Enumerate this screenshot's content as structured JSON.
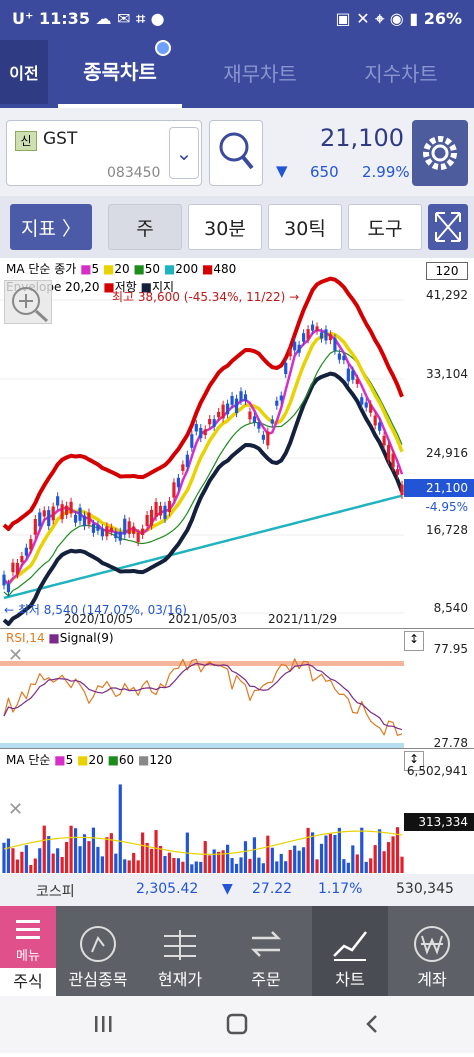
{
  "status": {
    "carrier": "U⁺",
    "time": "11:35",
    "battery": "26%"
  },
  "topnav": {
    "back": "이전",
    "tabs": [
      "종목차트",
      "재무차트",
      "지수차트"
    ]
  },
  "stock": {
    "badge": "신",
    "name": "GST",
    "code": "083450",
    "price": "21,100",
    "change": "650",
    "change_pct": "2.99%",
    "down_arrow": "▼"
  },
  "toolbar": {
    "indicator": "지표 〉",
    "period_week": "주",
    "period_30min": "30분",
    "period_30tick": "30틱",
    "tools": "도구"
  },
  "main_chart": {
    "legend1": {
      "prefix": "MA 단순 종가",
      "ma5": "5",
      "ma20": "20",
      "ma50": "50",
      "ma200": "200",
      "ma480": "480"
    },
    "legend2": {
      "prefix": "Envelope 20,20",
      "low": "저항",
      "high": "지지"
    },
    "count_box": "120",
    "y_labels": [
      "41,292",
      "33,104",
      "24,916",
      "16,728",
      "8,540"
    ],
    "x_labels": [
      "2020/10/05",
      "2021/05/03",
      "2021/11/29"
    ],
    "current_price": "21,100",
    "current_pct": "-4.95%",
    "high_note": "최고 38,600 (-45.34%, 11/22) →",
    "low_note": "← 최저 8,540 (147.07%, 03/16)"
  },
  "rsi_chart": {
    "legend_rsi": "RSI,14",
    "legend_signal": "Signal(9)",
    "y_labels": [
      "77.95",
      "27.78"
    ]
  },
  "vol_chart": {
    "legend": {
      "prefix": "MA 단순",
      "ma5": "5",
      "ma20": "20",
      "ma60": "60",
      "ma120": "120"
    },
    "y_top": "6,502,941",
    "current": "313,334"
  },
  "market": {
    "name": "코스피",
    "value": "2,305.42",
    "arrow": "▼",
    "change": "27.22",
    "pct": "1.17%",
    "volume": "530,345"
  },
  "bottomnav": {
    "menu": "메뉴",
    "stock": "주식",
    "items": [
      "관심종목",
      "현재가",
      "주문",
      "차트",
      "계좌"
    ]
  },
  "colors": {
    "header": "#3b4a9c",
    "ma5": "#d62fc8",
    "ma20": "#e8d300",
    "ma50": "#1d8c1d",
    "ma200": "#1fb3c0",
    "ma480": "#d40000",
    "support": "#14213d",
    "up": "#e0202a",
    "down": "#2255d6"
  }
}
